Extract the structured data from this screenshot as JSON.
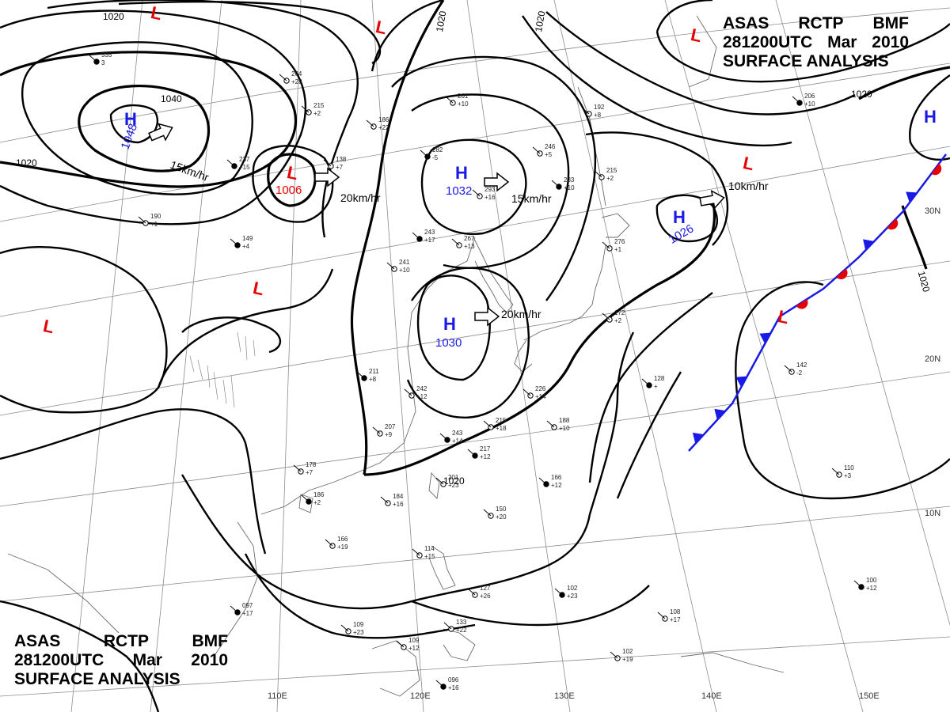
{
  "header": {
    "line1": [
      "ASAS",
      "RCTP",
      "BMF"
    ],
    "line2": [
      "281200UTC",
      "Mar",
      "2010"
    ],
    "line3": "SURFACE  ANALYSIS"
  },
  "longitude_labels": [
    "110E",
    "120E",
    "130E",
    "140E",
    "150E"
  ],
  "latitude_labels": [
    "30N",
    "20N",
    "10N"
  ],
  "isobar_labels": [
    "1020",
    "1020",
    "1020",
    "1020",
    "1040",
    "1020",
    "1020",
    "1020"
  ],
  "systems": [
    {
      "type": "H",
      "pressure": "1048",
      "speed": "15km/hr"
    },
    {
      "type": "L",
      "pressure": "1006",
      "speed": "20km/hr"
    },
    {
      "type": "H",
      "pressure": "1032",
      "speed": "15km/hr"
    },
    {
      "type": "H",
      "pressure": "1030",
      "speed": "20km/hr"
    },
    {
      "type": "H",
      "pressure": "1026",
      "speed": "10km/hr"
    },
    {
      "type": "L",
      "pressure": "",
      "speed": ""
    },
    {
      "type": "L",
      "pressure": "",
      "speed": ""
    },
    {
      "type": "L",
      "pressure": "",
      "speed": ""
    },
    {
      "type": "L",
      "pressure": "",
      "speed": ""
    },
    {
      "type": "L",
      "pressure": "",
      "speed": ""
    },
    {
      "type": "L",
      "pressure": "",
      "speed": ""
    },
    {
      "type": "L",
      "pressure": "",
      "speed": ""
    },
    {
      "type": "H",
      "pressure": "",
      "speed": ""
    }
  ],
  "stations": [
    {
      "pressure": "335",
      "temp": "3"
    },
    {
      "pressure": "264",
      "temp": "+28"
    },
    {
      "pressure": "261",
      "temp": "+10"
    },
    {
      "pressure": "282",
      "temp": "-5"
    },
    {
      "pressure": "246",
      "temp": "+5"
    },
    {
      "pressure": "192",
      "temp": "+8"
    },
    {
      "pressure": "206",
      "temp": "+10"
    },
    {
      "pressure": "186",
      "temp": "+22"
    },
    {
      "pressure": "215",
      "temp": "+2"
    },
    {
      "pressure": "237",
      "temp": "+15"
    },
    {
      "pressure": "138",
      "temp": "+7"
    },
    {
      "pressure": "293",
      "temp": "+16"
    },
    {
      "pressure": "233",
      "temp": "+10"
    },
    {
      "pressure": "215",
      "temp": "+2"
    },
    {
      "pressure": "190",
      "temp": "+1"
    },
    {
      "pressure": "243",
      "temp": "+17"
    },
    {
      "pressure": "267",
      "temp": "+13"
    },
    {
      "pressure": "241",
      "temp": "+10"
    },
    {
      "pressure": "149",
      "temp": "+4"
    },
    {
      "pressure": "226",
      "temp": "+14"
    },
    {
      "pressure": "188",
      "temp": "+10"
    },
    {
      "pressure": "211",
      "temp": "+8"
    },
    {
      "pressure": "242",
      "temp": "+12"
    },
    {
      "pressure": "207",
      "temp": "+9"
    },
    {
      "pressure": "243",
      "temp": "+14"
    },
    {
      "pressure": "215",
      "temp": "+18"
    },
    {
      "pressure": "178",
      "temp": "+7"
    },
    {
      "pressure": "186",
      "temp": "+2"
    },
    {
      "pressure": "184",
      "temp": "+16"
    },
    {
      "pressure": "201",
      "temp": "+23"
    },
    {
      "pressure": "166",
      "temp": "+12"
    },
    {
      "pressure": "150",
      "temp": "+20"
    },
    {
      "pressure": "166",
      "temp": "+19"
    },
    {
      "pressure": "102",
      "temp": "+23"
    },
    {
      "pressure": "127",
      "temp": "+26"
    },
    {
      "pressure": "114",
      "temp": "+15"
    },
    {
      "pressure": "097",
      "temp": "+17"
    },
    {
      "pressure": "109",
      "temp": "+23"
    },
    {
      "pressure": "109",
      "temp": "+12"
    },
    {
      "pressure": "096",
      "temp": "+16"
    },
    {
      "pressure": "102",
      "temp": "+19"
    },
    {
      "pressure": "108",
      "temp": "+17"
    },
    {
      "pressure": "100",
      "temp": "+12"
    },
    {
      "pressure": "110",
      "temp": "+3"
    },
    {
      "pressure": "142",
      "temp": "-2"
    },
    {
      "pressure": "128",
      "temp": "+"
    },
    {
      "pressure": "172",
      "temp": "+2"
    },
    {
      "pressure": "276",
      "temp": "+1"
    },
    {
      "pressure": "217",
      "temp": "+12"
    },
    {
      "pressure": "133",
      "temp": "+22"
    }
  ],
  "colors": {
    "isobar": "#000000",
    "high": "#1a1ae6",
    "low": "#e60000",
    "cold_front": "#1a1ae6",
    "warm_front": "#e60000",
    "grid": "#888888",
    "coast": "#666666"
  }
}
